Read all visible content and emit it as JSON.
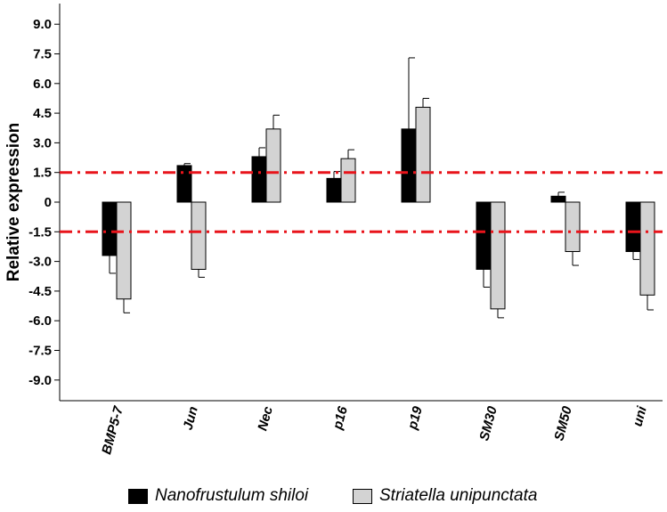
{
  "chart_data": {
    "type": "bar",
    "title": "",
    "xlabel": "",
    "ylabel": "Relative expression",
    "ylim": [
      -10.2,
      10.2
    ],
    "yticks": [
      9.0,
      7.5,
      6.0,
      4.5,
      3.0,
      1.5,
      0,
      -1.5,
      -3.0,
      -4.5,
      -6.0,
      -7.5,
      -9.0
    ],
    "ytick_labels": [
      "9.0",
      "7.5",
      "6.0",
      "4.5",
      "3.0",
      "1.5",
      "0",
      "-1.5",
      "-3.0",
      "-4.5",
      "-6.0",
      "-7.5",
      "-9.0"
    ],
    "categories": [
      "BMP5-7",
      "Jun",
      "Nec",
      "p16",
      "p19",
      "SM30",
      "SM50",
      "uni"
    ],
    "series": [
      {
        "name": "Nanofrustulum shiloi",
        "color": "#000000",
        "values": [
          -2.7,
          1.85,
          2.3,
          1.2,
          3.7,
          -3.4,
          0.3,
          -2.5
        ],
        "errors": [
          0.9,
          0.1,
          0.45,
          0.35,
          3.6,
          0.9,
          0.2,
          0.4
        ]
      },
      {
        "name": "Striatella unipunctata",
        "color": "#d3d3d3",
        "values": [
          -4.9,
          -3.4,
          3.7,
          2.2,
          4.8,
          -5.4,
          -2.5,
          -4.7
        ],
        "errors": [
          0.7,
          0.4,
          0.7,
          0.45,
          0.45,
          0.45,
          0.7,
          0.75
        ]
      }
    ],
    "threshold_lines": [
      1.5,
      -1.5
    ],
    "threshold_color": "#e8141b",
    "grid": false,
    "legend_position": "bottom"
  }
}
